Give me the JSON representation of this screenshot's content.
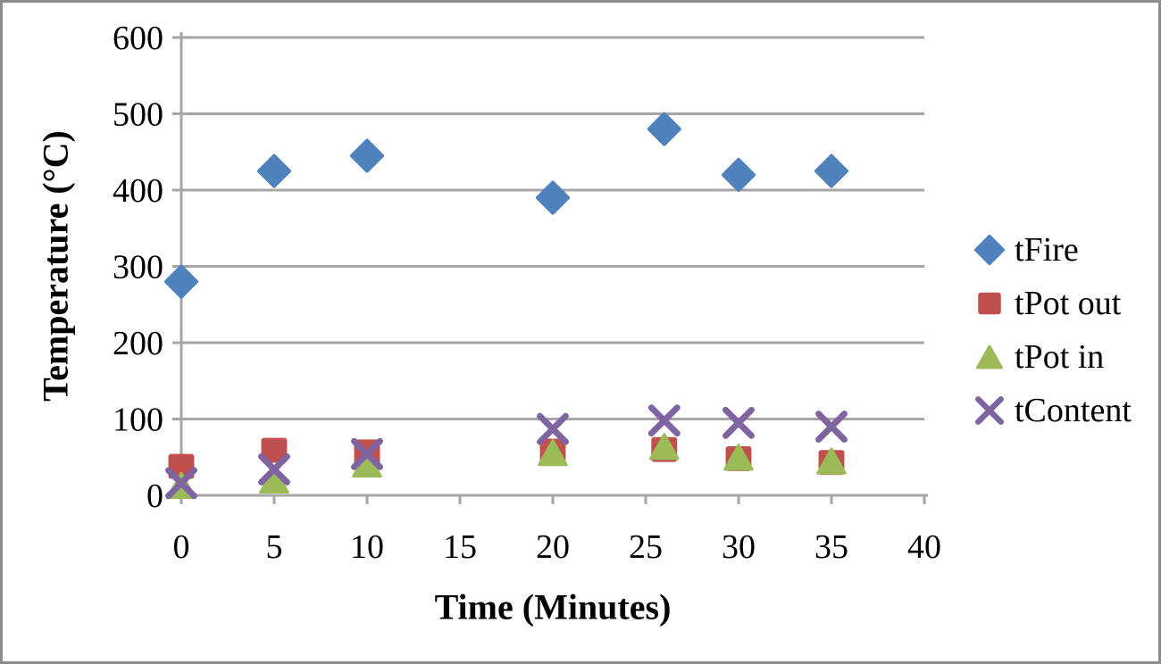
{
  "chart_data": {
    "type": "scatter",
    "title": "",
    "xlabel": "Time (Minutes)",
    "ylabel": "Temperature (°C)",
    "xlim": [
      0,
      40
    ],
    "ylim": [
      0,
      600
    ],
    "xticks": [
      0,
      5,
      10,
      15,
      20,
      25,
      30,
      35,
      40
    ],
    "yticks": [
      0,
      100,
      200,
      300,
      400,
      500,
      600
    ],
    "grid": "horizontal",
    "legend_position": "right",
    "x": [
      0,
      5,
      10,
      20,
      26,
      30,
      35
    ],
    "series": [
      {
        "name": "tFire",
        "marker": "diamond",
        "color": "#4F81BD",
        "values": [
          280,
          425,
          445,
          390,
          480,
          420,
          425
        ]
      },
      {
        "name": "tPot out",
        "marker": "square",
        "color": "#C0504D",
        "values": [
          38,
          59,
          57,
          58,
          60,
          48,
          43
        ]
      },
      {
        "name": "tPot in",
        "marker": "triangle",
        "color": "#9BBB59",
        "values": [
          13,
          20,
          41,
          56,
          64,
          50,
          45
        ]
      },
      {
        "name": "tContent",
        "marker": "x",
        "color": "#8064A2",
        "values": [
          16,
          34,
          54,
          87,
          98,
          95,
          90
        ]
      }
    ],
    "colors": {
      "gridline": "#A6A6A6",
      "axis": "#A6A6A6",
      "text": "#000000",
      "background": "#FFFFFF",
      "border": "#8C8C8C"
    }
  }
}
